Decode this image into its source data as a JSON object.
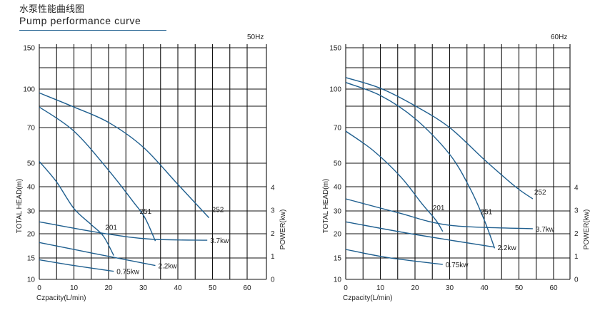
{
  "header": {
    "title_cn": "水泵性能曲线图",
    "title_en": "Pump performance curve"
  },
  "chart_data": [
    {
      "type": "line",
      "frequency_label": "50Hz",
      "xlabel": "Czpacity(L/min)",
      "ylabel": "TOTAL HEAD(m)",
      "y2label": "POWER(kw)",
      "x_ticks": [
        "0",
        "10",
        "20",
        "30",
        "40",
        "50",
        "60"
      ],
      "y_ticks": [
        "10",
        "15",
        "20",
        "30",
        "40",
        "50",
        "70",
        "100",
        "150"
      ],
      "y2_ticks": [
        "0",
        "1",
        "2",
        "3",
        "4"
      ],
      "xlim": [
        0,
        60
      ],
      "grid": true,
      "series": [
        {
          "name": "201",
          "kind": "head",
          "x": [
            0,
            5,
            10,
            15,
            18.5,
            21.5
          ],
          "y": [
            51,
            42,
            31,
            24,
            19.5,
            15.5
          ]
        },
        {
          "name": "251",
          "kind": "head",
          "x": [
            0,
            10,
            20,
            27,
            30.5,
            33.5
          ],
          "y": [
            86,
            68,
            47,
            34,
            27,
            18.5
          ]
        },
        {
          "name": "252",
          "kind": "head",
          "x": [
            0,
            10,
            20,
            30,
            40,
            49
          ],
          "y": [
            97,
            86,
            74,
            59,
            41,
            27
          ]
        },
        {
          "name": "0.75kw",
          "kind": "power",
          "x": [
            0,
            10,
            21.5
          ],
          "y": [
            0.85,
            0.6,
            0.35
          ]
        },
        {
          "name": "2.2kw",
          "kind": "power",
          "x": [
            0,
            15,
            33.5
          ],
          "y": [
            1.6,
            1.15,
            0.6
          ]
        },
        {
          "name": "3.7kw",
          "kind": "power",
          "x": [
            0,
            18.5,
            32,
            48.5
          ],
          "y": [
            2.5,
            2.0,
            1.75,
            1.7
          ]
        }
      ]
    },
    {
      "type": "line",
      "frequency_label": "60Hz",
      "xlabel": "Czpacity(L/min)",
      "ylabel": "TOTAL HEAD(m)",
      "y2label": "POWER(kw)",
      "x_ticks": [
        "0",
        "10",
        "20",
        "30",
        "40",
        "50",
        "60"
      ],
      "y_ticks": [
        "10",
        "15",
        "20",
        "30",
        "40",
        "50",
        "70",
        "100",
        "150"
      ],
      "y2_ticks": [
        "0",
        "1",
        "2",
        "3",
        "4"
      ],
      "xlim": [
        0,
        60
      ],
      "grid": true,
      "series": [
        {
          "name": "201",
          "kind": "head",
          "x": [
            0,
            8,
            16,
            22,
            26,
            28
          ],
          "y": [
            68,
            57,
            44,
            33,
            26,
            21
          ]
        },
        {
          "name": "251",
          "kind": "head",
          "x": [
            0,
            10,
            20,
            30,
            36,
            40,
            43
          ],
          "y": [
            108,
            95,
            77,
            55,
            39,
            26,
            17
          ]
        },
        {
          "name": "252",
          "kind": "head",
          "x": [
            0,
            10,
            20,
            30,
            40,
            49,
            54
          ],
          "y": [
            114,
            101,
            87,
            70,
            52,
            40,
            35
          ]
        },
        {
          "name": "0.75kw",
          "kind": "power",
          "x": [
            0,
            12,
            28
          ],
          "y": [
            1.3,
            0.95,
            0.65
          ]
        },
        {
          "name": "2.2kw",
          "kind": "power",
          "x": [
            0,
            20,
            43
          ],
          "y": [
            2.5,
            1.95,
            1.4
          ]
        },
        {
          "name": "3.7kw",
          "kind": "power",
          "x": [
            0,
            15,
            30,
            54
          ],
          "y": [
            3.5,
            2.9,
            2.35,
            2.2
          ]
        }
      ]
    }
  ]
}
